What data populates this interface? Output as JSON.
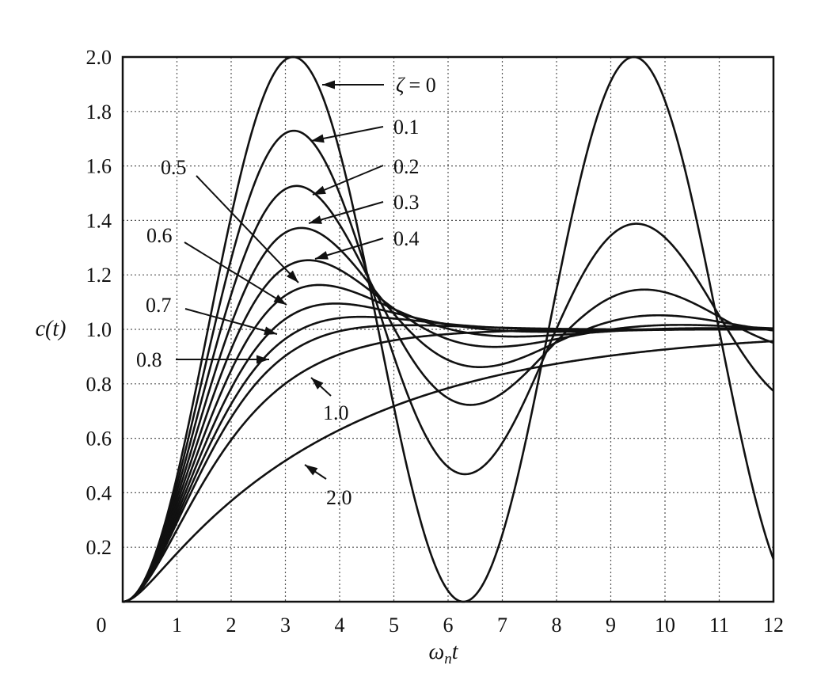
{
  "chart_data": {
    "type": "line",
    "title": "",
    "xlabel": "ωnt",
    "ylabel": "c(t)",
    "xlim": [
      0,
      12
    ],
    "ylim": [
      0,
      2.0
    ],
    "grid": true,
    "x_ticks": [
      "0",
      "1",
      "2",
      "3",
      "4",
      "5",
      "6",
      "7",
      "8",
      "9",
      "10",
      "11",
      "12"
    ],
    "y_ticks": [
      "0.2",
      "0.4",
      "0.6",
      "0.8",
      "1.0",
      "1.2",
      "1.4",
      "1.6",
      "1.8",
      "2.0"
    ],
    "zeta_symbol": "ζ",
    "series": [
      {
        "name": "ζ = 0",
        "zeta": 0.0
      },
      {
        "name": "0.1",
        "zeta": 0.1
      },
      {
        "name": "0.2",
        "zeta": 0.2
      },
      {
        "name": "0.3",
        "zeta": 0.3
      },
      {
        "name": "0.4",
        "zeta": 0.4
      },
      {
        "name": "0.5",
        "zeta": 0.5
      },
      {
        "name": "0.6",
        "zeta": 0.6
      },
      {
        "name": "0.7",
        "zeta": 0.7
      },
      {
        "name": "0.8",
        "zeta": 0.8
      },
      {
        "name": "1.0",
        "zeta": 1.0
      },
      {
        "name": "2.0",
        "zeta": 2.0
      }
    ],
    "annotations": [
      {
        "text": "= 0",
        "series": "ζ = 0"
      },
      {
        "text": "0.1",
        "series": "0.1"
      },
      {
        "text": "0.2",
        "series": "0.2"
      },
      {
        "text": "0.3",
        "series": "0.3"
      },
      {
        "text": "0.4",
        "series": "0.4"
      },
      {
        "text": "0.5",
        "series": "0.5"
      },
      {
        "text": "0.6",
        "series": "0.6"
      },
      {
        "text": "0.7",
        "series": "0.7"
      },
      {
        "text": "0.8",
        "series": "0.8"
      },
      {
        "text": "1.0",
        "series": "1.0"
      },
      {
        "text": "2.0",
        "series": "2.0"
      }
    ]
  }
}
